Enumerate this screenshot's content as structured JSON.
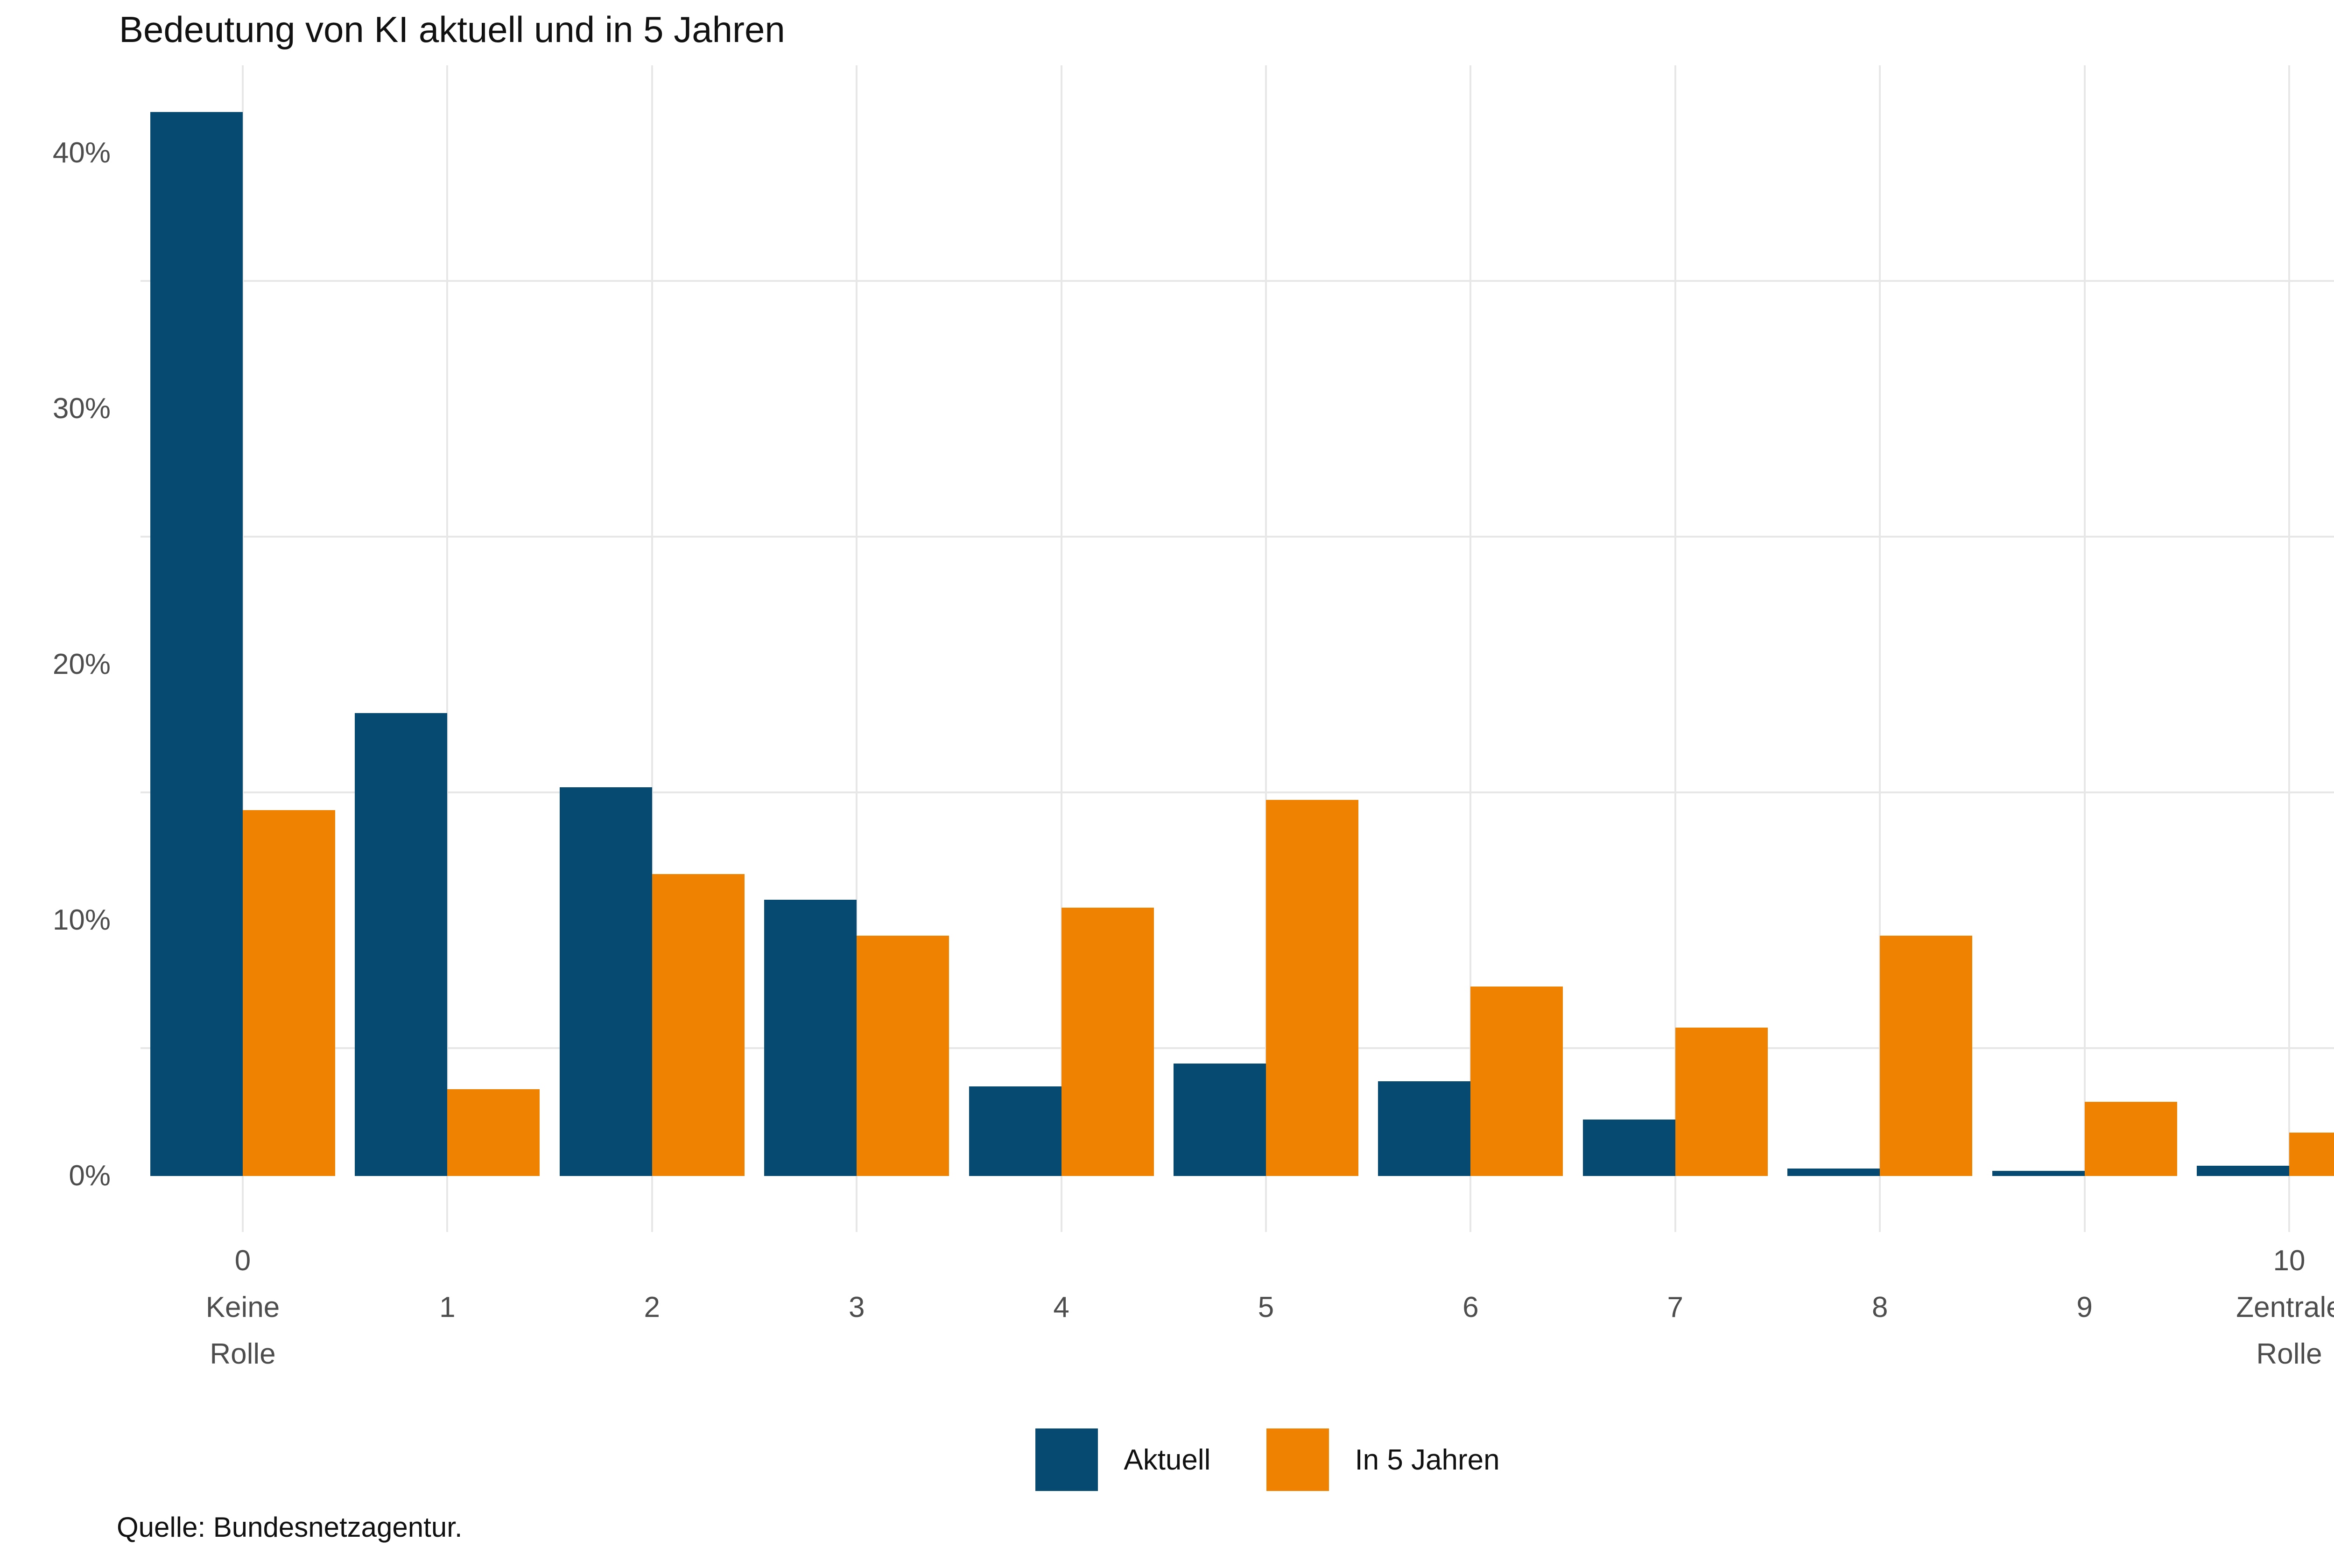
{
  "title": "Bedeutung von KI aktuell und in 5 Jahren",
  "caption": "Quelle: Bundesnetzagentur.",
  "colors": {
    "aktuell": "#064A71",
    "in_5_jahren": "#EF8200",
    "gridline": "#e7e7e7",
    "axis_text": "#4d4d4d"
  },
  "legend": {
    "items": [
      {
        "label": "Aktuell",
        "color": "#064A71"
      },
      {
        "label": "In 5 Jahren",
        "color": "#EF8200"
      }
    ]
  },
  "chart_data": {
    "type": "bar",
    "title": "Bedeutung von KI aktuell und in 5 Jahren",
    "categories": [
      "0",
      "1",
      "2",
      "3",
      "4",
      "5",
      "6",
      "7",
      "8",
      "9",
      "10"
    ],
    "x_labels": [
      {
        "lines": [
          "0",
          "Keine",
          "Rolle"
        ]
      },
      {
        "lines": [
          "1"
        ]
      },
      {
        "lines": [
          "2"
        ]
      },
      {
        "lines": [
          "3"
        ]
      },
      {
        "lines": [
          "4"
        ]
      },
      {
        "lines": [
          "5"
        ]
      },
      {
        "lines": [
          "6"
        ]
      },
      {
        "lines": [
          "7"
        ]
      },
      {
        "lines": [
          "8"
        ]
      },
      {
        "lines": [
          "9"
        ]
      },
      {
        "lines": [
          "10",
          "Zentrale",
          "Rolle"
        ]
      }
    ],
    "series": [
      {
        "name": "Aktuell",
        "color": "#064A71",
        "values": [
          41.6,
          18.1,
          15.2,
          10.8,
          3.5,
          4.4,
          3.7,
          2.2,
          0.3,
          0.2,
          0.4
        ]
      },
      {
        "name": "In 5 Jahren",
        "color": "#EF8200",
        "values": [
          14.3,
          3.4,
          11.8,
          9.4,
          10.5,
          14.7,
          7.4,
          5.8,
          9.4,
          2.9,
          1.7
        ]
      }
    ],
    "xlabel": "",
    "ylabel": "",
    "y_ticks": [
      {
        "label": "0%",
        "value": 0
      },
      {
        "label": "10%",
        "value": 10
      },
      {
        "label": "20%",
        "value": 20
      },
      {
        "label": "30%",
        "value": 30
      },
      {
        "label": "40%",
        "value": 40
      }
    ],
    "ylim": [
      0,
      43.5
    ],
    "grid": {
      "minor_y_values": [
        5,
        15,
        25,
        35
      ],
      "vertical_at_category_centers": true
    },
    "legend_position": "bottom",
    "unit": "%"
  }
}
